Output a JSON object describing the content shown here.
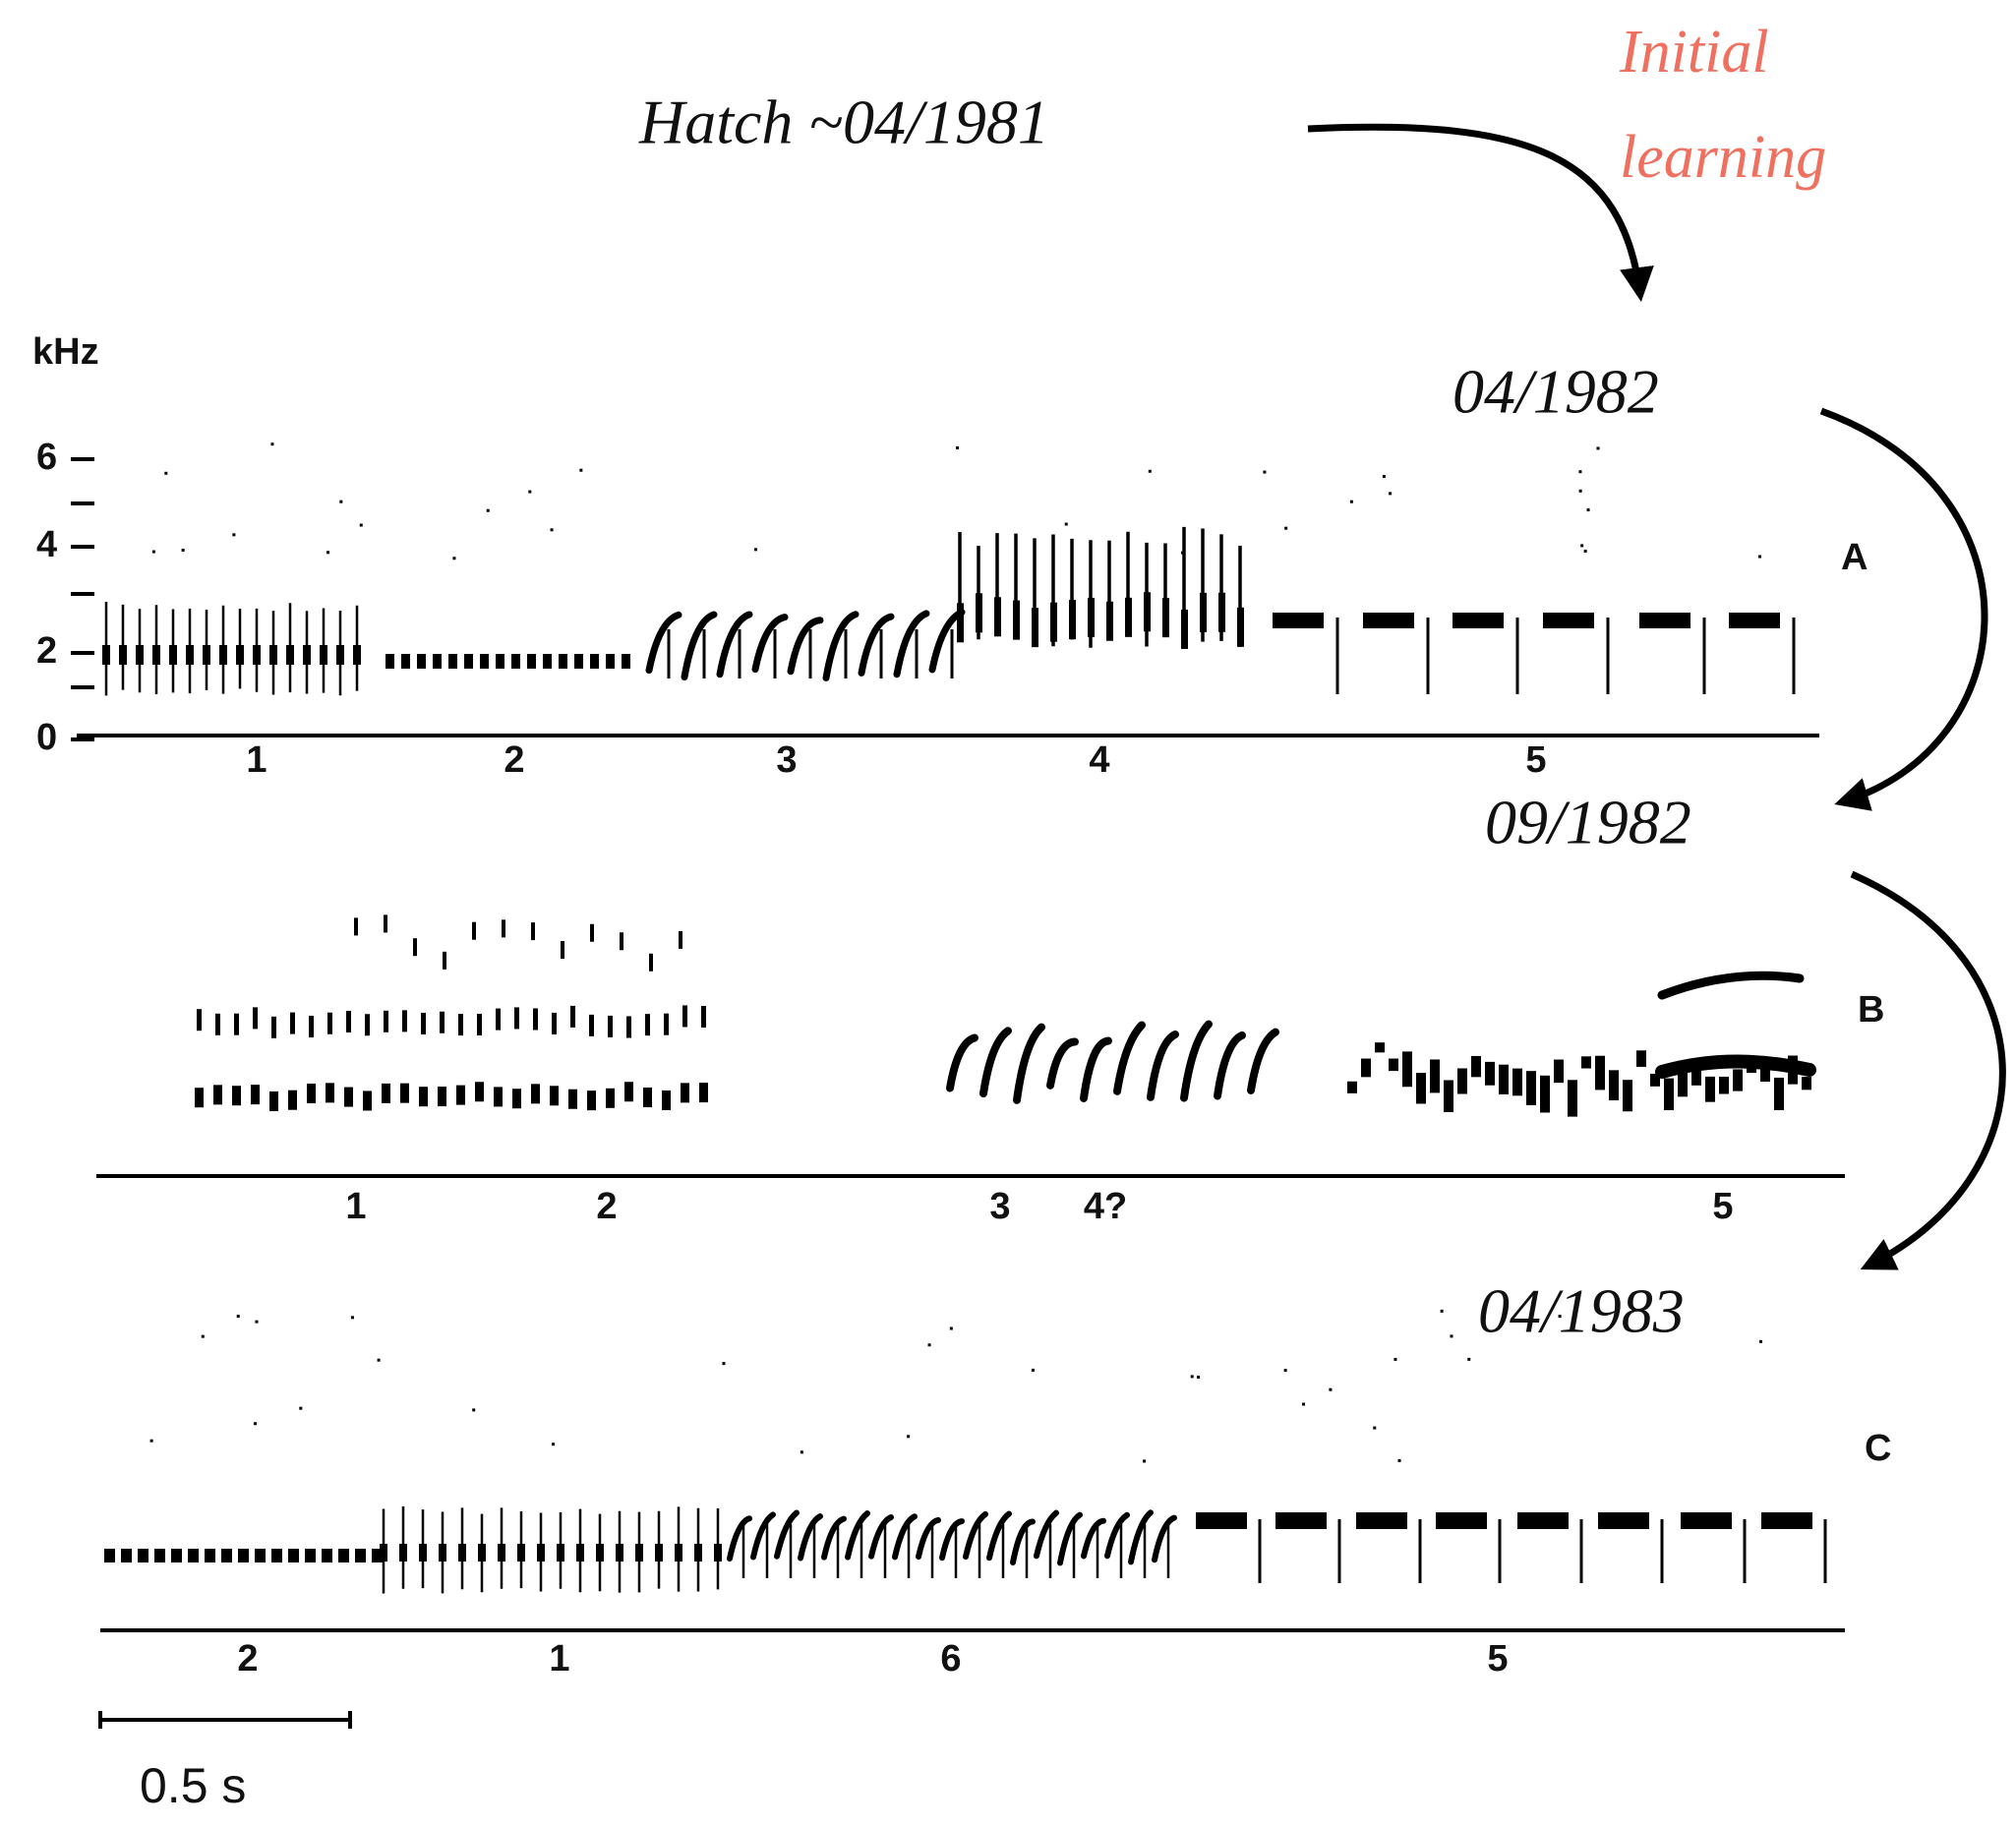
{
  "annotations": {
    "hatch": "Hatch ~04/1981",
    "initial_learning": [
      "Initial",
      "learning"
    ],
    "dates": [
      "04/1982",
      "09/1982",
      "04/1983"
    ]
  },
  "axis": {
    "unit": "kHz",
    "ticks": [
      "6",
      "4",
      "2",
      "0"
    ]
  },
  "panels": [
    {
      "label": "A",
      "phrases": [
        "1",
        "2",
        "3",
        "4",
        "5"
      ]
    },
    {
      "label": "B",
      "phrases": [
        "1",
        "2",
        "3",
        "4?",
        "5"
      ]
    },
    {
      "label": "C",
      "phrases": [
        "2",
        "1",
        "6",
        "5"
      ]
    }
  ],
  "scale_bar": "0.5 s"
}
